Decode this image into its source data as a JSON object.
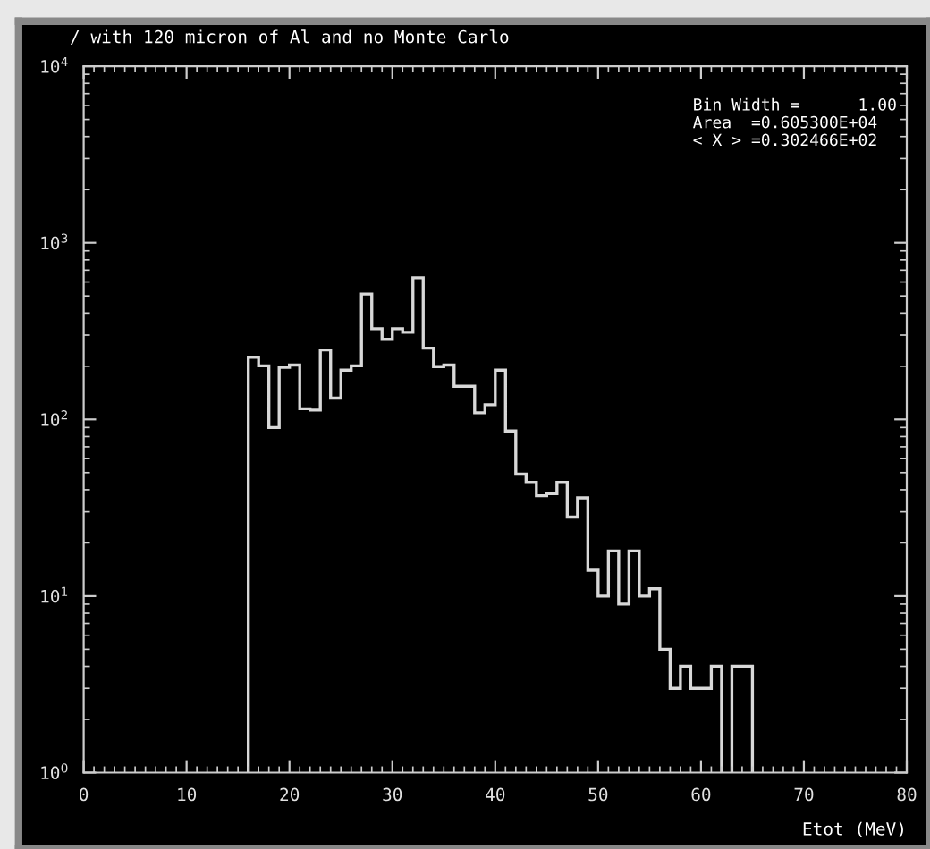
{
  "chart_data": {
    "type": "histogram",
    "title": "/ with 120 micron of Al and no Monte Carlo",
    "xlabel": "Etot (MeV)",
    "annotations": [
      "Bin Width =      1.00",
      "Area  =0.605300E+04",
      "< X > =0.302466E+02"
    ],
    "bins": [
      16,
      17,
      18,
      19,
      20,
      21,
      22,
      23,
      24,
      25,
      26,
      27,
      28,
      29,
      30,
      31,
      32,
      33,
      34,
      35,
      36,
      37,
      38,
      39,
      40,
      41,
      42,
      43,
      44,
      45,
      46,
      47,
      48,
      49,
      50,
      51,
      52,
      53,
      54,
      55,
      56,
      57,
      58,
      59,
      60,
      61,
      62,
      63,
      64,
      65
    ],
    "values": [
      225,
      201,
      90,
      197,
      203,
      115,
      113,
      247,
      132,
      190,
      201,
      512,
      326,
      284,
      326,
      311,
      634,
      253,
      199,
      203,
      154,
      154,
      109,
      121,
      190,
      86,
      49,
      44,
      37,
      38,
      44,
      28,
      36,
      14,
      10,
      18,
      9,
      18,
      10,
      11,
      5,
      3,
      4,
      3,
      3,
      4,
      null,
      4,
      4
    ],
    "color": "#d8d8d8",
    "log": "y",
    "xlim": [
      0,
      80
    ],
    "xticks": [
      0,
      10,
      20,
      30,
      40,
      50,
      60,
      70,
      80
    ],
    "ylim": [
      1,
      10000
    ],
    "yticks": [
      {
        "value": 1,
        "label": "10$^{0}$"
      },
      {
        "value": 10,
        "label": "10$^{1}$"
      },
      {
        "value": 100,
        "label": "10$^{2}$"
      },
      {
        "value": 1000,
        "label": "10$^{3}$"
      },
      {
        "value": 10000,
        "label": "10$^{4}$"
      }
    ],
    "grid": false,
    "legend": false
  }
}
